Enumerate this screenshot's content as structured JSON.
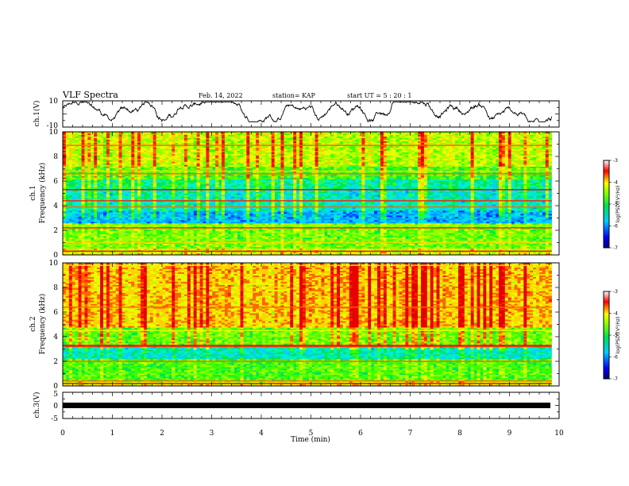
{
  "header": {
    "title": "VLF Spectra",
    "date": "Feb. 14, 2022",
    "station": "station= KAP",
    "start_ut": "start  UT =   5  : 20 : 1"
  },
  "chart_data": [
    {
      "id": "ch1v",
      "type": "line",
      "ylabel": "ch.1(V)",
      "ylim": [
        -10,
        10
      ],
      "yticks": [
        "10",
        "-10"
      ],
      "xlim": [
        0,
        10
      ],
      "data_extent_min": 9.85,
      "series": [
        {
          "color": "#000000",
          "style": "noisy waveform, range about -5 to 9 V"
        }
      ]
    },
    {
      "id": "ch1spec",
      "type": "heatmap",
      "ylabel": "ch.1\nFrequency (kHz)",
      "ylim": [
        0,
        10
      ],
      "yticks": [
        "0",
        "2",
        "4",
        "6",
        "8",
        "10"
      ],
      "xlim": [
        0,
        10
      ],
      "data_extent_min": 9.85,
      "colorbar": {
        "label": "log(PSD)(V²/Hz)",
        "ticks": [
          "-3",
          "-4",
          "-5",
          "-6",
          "-7"
        ],
        "range": [
          -7,
          -3
        ]
      }
    },
    {
      "id": "ch2spec",
      "type": "heatmap",
      "ylabel": "ch.2\nFrequency (kHz)",
      "ylim": [
        0,
        10
      ],
      "yticks": [
        "0",
        "2",
        "4",
        "6",
        "8",
        "10"
      ],
      "xlim": [
        0,
        10
      ],
      "data_extent_min": 9.85,
      "colorbar": {
        "label": "log(PSD)(V²/Hz)",
        "ticks": [
          "-3",
          "-4",
          "-5",
          "-6",
          "-7"
        ],
        "range": [
          -7,
          -3
        ]
      }
    },
    {
      "id": "ch3v",
      "type": "line",
      "ylabel": "ch.3(V)",
      "ylim": [
        -5,
        5
      ],
      "yticks": [
        "5",
        "0",
        "-5"
      ],
      "xlim": [
        0,
        10
      ],
      "data_extent_min": 9.85,
      "series": [
        {
          "color": "#000000",
          "style": "thick flat band near -1 V"
        }
      ]
    }
  ],
  "x_axis": {
    "label": "Time  (min)",
    "ticks": [
      "0",
      "1",
      "2",
      "3",
      "4",
      "5",
      "6",
      "7",
      "8",
      "9",
      "10"
    ]
  }
}
